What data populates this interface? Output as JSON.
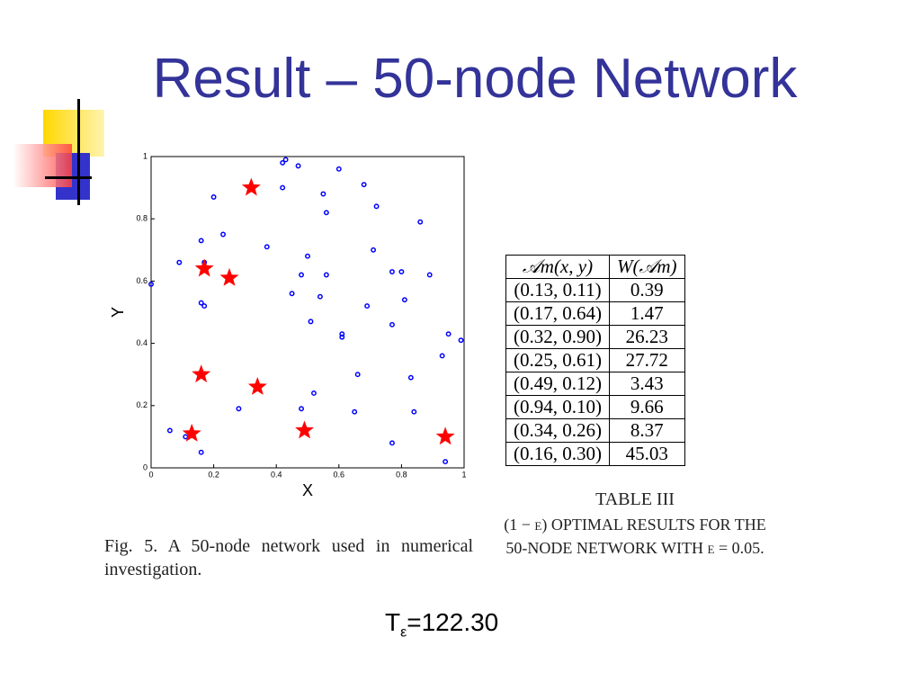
{
  "title": "Result – 50-node Network",
  "chart_data": {
    "type": "scatter",
    "xlabel": "X",
    "ylabel": "Y",
    "xlim": [
      0,
      1
    ],
    "ylim": [
      0,
      1
    ],
    "xticks": [
      0,
      0.2,
      0.4,
      0.6,
      0.8,
      1
    ],
    "yticks": [
      0,
      0.2,
      0.4,
      0.6,
      0.8,
      1
    ],
    "series": [
      {
        "color": "#0000ff",
        "marker": "circle",
        "x": [
          0.42,
          0.43,
          0.47,
          0.6,
          0.42,
          0.68,
          0.55,
          0.2,
          0.72,
          0.56,
          0.86,
          0.23,
          0.16,
          0.37,
          0.71,
          0.5,
          0.09,
          0.17,
          0.77,
          0.8,
          0.48,
          0.56,
          0.89,
          0.0,
          0.45,
          0.54,
          0.81,
          0.16,
          0.17,
          0.69,
          0.51,
          0.77,
          0.61,
          0.61,
          0.95,
          0.99,
          0.93,
          0.66,
          0.83,
          0.52,
          0.48,
          0.28,
          0.65,
          0.84,
          0.06,
          0.11,
          0.77,
          0.16,
          0.94
        ],
        "values": [
          0.98,
          0.99,
          0.97,
          0.96,
          0.9,
          0.91,
          0.88,
          0.87,
          0.84,
          0.82,
          0.79,
          0.75,
          0.73,
          0.71,
          0.7,
          0.68,
          0.66,
          0.66,
          0.63,
          0.63,
          0.62,
          0.62,
          0.62,
          0.59,
          0.56,
          0.55,
          0.54,
          0.53,
          0.52,
          0.52,
          0.47,
          0.46,
          0.43,
          0.42,
          0.43,
          0.41,
          0.36,
          0.3,
          0.29,
          0.24,
          0.19,
          0.19,
          0.18,
          0.18,
          0.12,
          0.1,
          0.08,
          0.05,
          0.02
        ]
      },
      {
        "color": "#ff0000",
        "marker": "star",
        "x": [
          0.13,
          0.17,
          0.32,
          0.25,
          0.49,
          0.94,
          0.34,
          0.16
        ],
        "values": [
          0.11,
          0.64,
          0.9,
          0.61,
          0.12,
          0.1,
          0.26,
          0.3
        ]
      }
    ]
  },
  "figure_caption": "Fig. 5.    A 50-node network used in numerical investigation.",
  "table": {
    "header": [
      "𝒜m(x, y)",
      "W(𝒜m)"
    ],
    "rows": [
      [
        "(0.13, 0.11)",
        "0.39"
      ],
      [
        "(0.17, 0.64)",
        "1.47"
      ],
      [
        "(0.32, 0.90)",
        "26.23"
      ],
      [
        "(0.25, 0.61)",
        "27.72"
      ],
      [
        "(0.49, 0.12)",
        "3.43"
      ],
      [
        "(0.94, 0.10)",
        "9.66"
      ],
      [
        "(0.34, 0.26)",
        "8.37"
      ],
      [
        "(0.16, 0.30)",
        "45.03"
      ]
    ],
    "label": "TABLE III",
    "caption": "(1 − ε) OPTIMAL RESULTS FOR THE 50-NODE NETWORK WITH ε = 0.05."
  },
  "footer": {
    "main": "T",
    "sub": "ε",
    "rest": "=122.30"
  }
}
